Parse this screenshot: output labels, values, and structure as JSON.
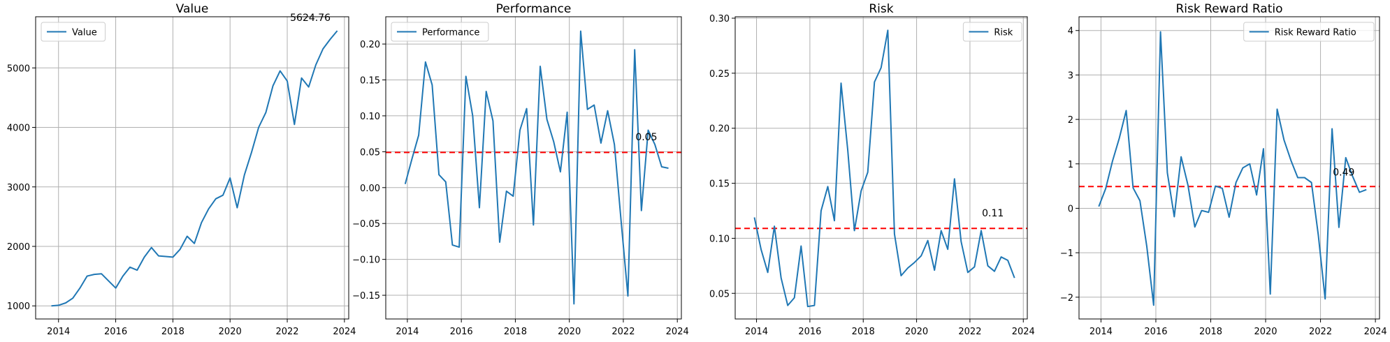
{
  "colors": {
    "series": "#1f77b4",
    "reference": "#ff0000"
  },
  "chart_data": [
    {
      "type": "line",
      "title": "Value",
      "xlabel": "",
      "ylabel": "",
      "grid": true,
      "legend_position": "upper left",
      "xlim": [
        2013.2,
        2024.15
      ],
      "ylim": [
        780,
        5860
      ],
      "xticks": [
        "2014",
        "2016",
        "2018",
        "2020",
        "2022",
        "2024"
      ],
      "yticks": [
        "1000",
        "2000",
        "3000",
        "4000",
        "5000"
      ],
      "series": [
        {
          "name": "Value",
          "x": [
            2013.75,
            2014.0,
            2014.25,
            2014.5,
            2014.75,
            2015.0,
            2015.25,
            2015.5,
            2015.75,
            2016.0,
            2016.25,
            2016.5,
            2016.75,
            2017.0,
            2017.25,
            2017.5,
            2017.75,
            2018.0,
            2018.25,
            2018.5,
            2018.75,
            2019.0,
            2019.25,
            2019.5,
            2019.75,
            2020.0,
            2020.25,
            2020.5,
            2020.75,
            2021.0,
            2021.25,
            2021.5,
            2021.75,
            2022.0,
            2022.25,
            2022.5,
            2022.75,
            2023.0,
            2023.25,
            2023.5,
            2023.75
          ],
          "y": [
            1000,
            1010,
            1050,
            1130,
            1300,
            1500,
            1530,
            1540,
            1420,
            1300,
            1500,
            1650,
            1600,
            1820,
            1980,
            1840,
            1830,
            1820,
            1950,
            2170,
            2050,
            2400,
            2630,
            2800,
            2860,
            3150,
            2650,
            3200,
            3580,
            4000,
            4250,
            4700,
            4950,
            4780,
            4050,
            4830,
            4680,
            5050,
            5320,
            5480,
            5624.76
          ]
        }
      ],
      "annotations": [
        {
          "text": "5624.76",
          "x": 2022.1,
          "y": 5790
        }
      ]
    },
    {
      "type": "line",
      "title": "Performance",
      "xlabel": "",
      "ylabel": "",
      "grid": true,
      "legend_position": "upper left",
      "xlim": [
        2013.2,
        2024.15
      ],
      "ylim": [
        -0.183,
        0.238
      ],
      "xticks": [
        "2014",
        "2016",
        "2018",
        "2020",
        "2022",
        "2024"
      ],
      "yticks": [
        "−0.15",
        "−0.10",
        "−0.05",
        "0.00",
        "0.05",
        "0.10",
        "0.15",
        "0.20"
      ],
      "series": [
        {
          "name": "Performance",
          "x": [
            2013.92,
            2014.17,
            2014.42,
            2014.67,
            2014.92,
            2015.17,
            2015.42,
            2015.67,
            2015.92,
            2016.17,
            2016.42,
            2016.67,
            2016.92,
            2017.17,
            2017.42,
            2017.67,
            2017.92,
            2018.17,
            2018.42,
            2018.67,
            2018.92,
            2019.17,
            2019.42,
            2019.67,
            2019.92,
            2020.17,
            2020.42,
            2020.67,
            2020.92,
            2021.17,
            2021.42,
            2021.67,
            2021.92,
            2022.17,
            2022.42,
            2022.67,
            2022.92,
            2023.17,
            2023.42,
            2023.67
          ],
          "y": [
            0.005,
            0.04,
            0.073,
            0.175,
            0.143,
            0.018,
            0.008,
            -0.08,
            -0.083,
            0.155,
            0.1,
            -0.028,
            0.134,
            0.093,
            -0.076,
            -0.005,
            -0.012,
            0.08,
            0.11,
            -0.052,
            0.169,
            0.095,
            0.064,
            0.022,
            0.105,
            -0.162,
            0.218,
            0.109,
            0.115,
            0.062,
            0.107,
            0.06,
            -0.048,
            -0.151,
            0.192,
            -0.032,
            0.08,
            0.06,
            0.029,
            0.027
          ]
        }
      ],
      "reference_line": {
        "y": 0.049,
        "style": "dashed"
      },
      "annotations": [
        {
          "text": "0.05",
          "x": 2022.45,
          "y": 0.066
        }
      ]
    },
    {
      "type": "line",
      "title": "Risk",
      "xlabel": "",
      "ylabel": "",
      "grid": true,
      "legend_position": "upper right",
      "xlim": [
        2013.2,
        2024.15
      ],
      "ylim": [
        0.0267,
        0.3013
      ],
      "xticks": [
        "2014",
        "2016",
        "2018",
        "2020",
        "2022",
        "2024"
      ],
      "yticks": [
        "0.05",
        "0.10",
        "0.15",
        "0.20",
        "0.25",
        "0.30"
      ],
      "series": [
        {
          "name": "Risk",
          "x": [
            2013.92,
            2014.17,
            2014.42,
            2014.67,
            2014.92,
            2015.17,
            2015.42,
            2015.67,
            2015.92,
            2016.17,
            2016.42,
            2016.67,
            2016.92,
            2017.17,
            2017.42,
            2017.67,
            2017.92,
            2018.17,
            2018.42,
            2018.67,
            2018.92,
            2019.17,
            2019.42,
            2019.67,
            2019.92,
            2020.17,
            2020.42,
            2020.67,
            2020.92,
            2021.17,
            2021.42,
            2021.67,
            2021.92,
            2022.17,
            2022.42,
            2022.67,
            2022.92,
            2023.17,
            2023.42,
            2023.67
          ],
          "y": [
            0.119,
            0.09,
            0.069,
            0.111,
            0.064,
            0.039,
            0.046,
            0.093,
            0.038,
            0.039,
            0.125,
            0.147,
            0.116,
            0.241,
            0.18,
            0.107,
            0.143,
            0.16,
            0.242,
            0.255,
            0.289,
            0.104,
            0.066,
            0.073,
            0.078,
            0.084,
            0.098,
            0.071,
            0.107,
            0.09,
            0.154,
            0.097,
            0.069,
            0.074,
            0.107,
            0.075,
            0.07,
            0.083,
            0.08,
            0.064
          ]
        }
      ],
      "reference_line": {
        "y": 0.109,
        "style": "dashed"
      },
      "annotations": [
        {
          "text": "0.11",
          "x": 2022.45,
          "y": 0.12
        }
      ]
    },
    {
      "type": "line",
      "title": "Risk Reward Ratio",
      "xlabel": "",
      "ylabel": "",
      "grid": true,
      "legend_position": "upper right",
      "xlim": [
        2013.2,
        2024.15
      ],
      "ylim": [
        -2.49,
        4.31
      ],
      "xticks": [
        "2014",
        "2016",
        "2018",
        "2020",
        "2022",
        "2024"
      ],
      "yticks": [
        "−2",
        "−1",
        "0",
        "1",
        "2",
        "3",
        "4"
      ],
      "series": [
        {
          "name": "Risk Reward Ratio",
          "x": [
            2013.92,
            2014.17,
            2014.42,
            2014.67,
            2014.92,
            2015.17,
            2015.42,
            2015.67,
            2015.92,
            2016.17,
            2016.42,
            2016.67,
            2016.92,
            2017.17,
            2017.42,
            2017.67,
            2017.92,
            2018.17,
            2018.42,
            2018.67,
            2018.92,
            2019.17,
            2019.42,
            2019.67,
            2019.92,
            2020.17,
            2020.42,
            2020.67,
            2020.92,
            2021.17,
            2021.42,
            2021.67,
            2021.92,
            2022.17,
            2022.42,
            2022.67,
            2022.92,
            2023.17,
            2023.42,
            2023.67
          ],
          "y": [
            0.04,
            0.44,
            1.06,
            1.58,
            2.2,
            0.46,
            0.17,
            -0.86,
            -2.18,
            3.97,
            0.8,
            -0.19,
            1.16,
            0.52,
            -0.42,
            -0.05,
            -0.09,
            0.5,
            0.45,
            -0.2,
            0.58,
            0.91,
            1.0,
            0.3,
            1.34,
            -1.93,
            2.23,
            1.54,
            1.08,
            0.69,
            0.69,
            0.58,
            -0.6,
            -2.04,
            1.79,
            -0.43,
            1.14,
            0.72,
            0.36,
            0.42
          ]
        }
      ],
      "reference_line": {
        "y": 0.49,
        "style": "dashed"
      },
      "annotations": [
        {
          "text": "0.49",
          "x": 2022.45,
          "y": 0.74
        }
      ]
    }
  ]
}
